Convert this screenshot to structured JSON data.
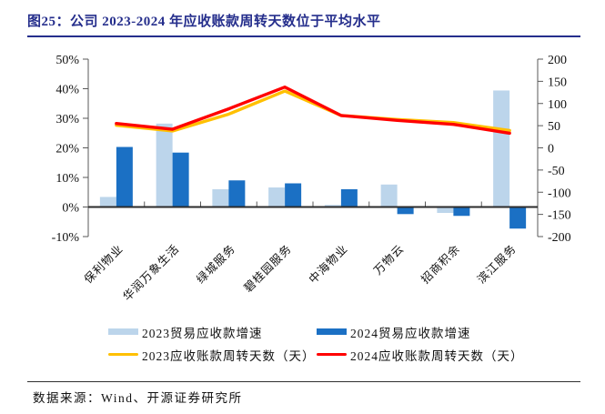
{
  "title": "图25：公司 2023-2024 年应收账款周转天数位于平均水平",
  "footer": {
    "source": "数据来源：Wind、开源证券研究所"
  },
  "colors": {
    "accent_navy": "#252E8C",
    "light_blue": "#BCD5EB",
    "dark_blue": "#1B70C4",
    "yellow": "#FFC000",
    "red": "#FF0000",
    "axis_line": "#595959",
    "zero_line": "#2B2B2B",
    "text": "#111111"
  },
  "chart_data": {
    "type": "bar",
    "subtype": "dual-axis bar + line combo",
    "categories": [
      "保利物业",
      "华润万象生活",
      "绿城服务",
      "碧桂园服务",
      "中海物业",
      "万物云",
      "招商积余",
      "滨江服务"
    ],
    "bar_series": [
      {
        "name": "2023贸易应收款增速",
        "axis": "left",
        "color_key": "light_blue",
        "values": [
          3.4,
          28.2,
          6.0,
          6.6,
          0.7,
          7.6,
          -2.0,
          39.4
        ]
      },
      {
        "name": "2024贸易应收款增速",
        "axis": "left",
        "color_key": "dark_blue",
        "values": [
          20.3,
          18.4,
          9.0,
          8.0,
          6.0,
          -2.4,
          -3.0,
          -7.3
        ]
      }
    ],
    "line_series": [
      {
        "name": "2023应收账款周转天数（天）",
        "axis": "right",
        "color_key": "yellow",
        "values": [
          51,
          38,
          76,
          128,
          73,
          64,
          57,
          39
        ]
      },
      {
        "name": "2024应收账款周转天数（天）",
        "axis": "right",
        "color_key": "red",
        "values": [
          55,
          42,
          88,
          137,
          73,
          62,
          53,
          33
        ]
      }
    ],
    "left_axis": {
      "unit": "%",
      "min": -10,
      "max": 50,
      "ticks": [
        "50%",
        "40%",
        "30%",
        "20%",
        "10%",
        "0%",
        "-10%"
      ]
    },
    "right_axis": {
      "unit": "天",
      "min": -200,
      "max": 200,
      "ticks": [
        "200",
        "150",
        "100",
        "50",
        "0",
        "-50",
        "-100",
        "-150",
        "-200"
      ]
    },
    "grid": false,
    "legend_position": "bottom"
  }
}
